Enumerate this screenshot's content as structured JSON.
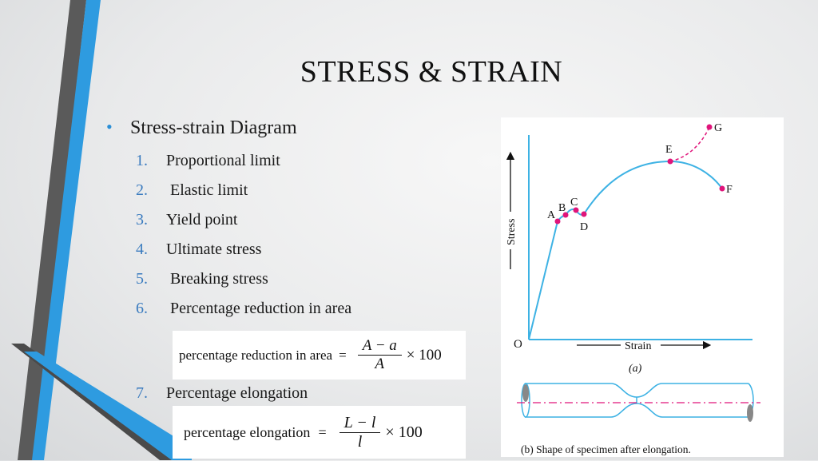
{
  "slide": {
    "title": "STRESS & STRAIN",
    "bullet": "Stress-strain Diagram",
    "items": [
      {
        "num": "1.",
        "label": "Proportional limit"
      },
      {
        "num": "2.",
        "label": "Elastic limit"
      },
      {
        "num": "3.",
        "label": "Yield point"
      },
      {
        "num": "4.",
        "label": "Ultimate stress"
      },
      {
        "num": "5.",
        "label": "Breaking stress"
      },
      {
        "num": "6.",
        "label": "Percentage reduction in area"
      },
      {
        "num": "7.",
        "label": "Percentage elongation"
      }
    ],
    "formula_area": {
      "lhs": "percentage reduction in area",
      "eq": "=",
      "numerator": "A − a",
      "denominator": "A",
      "times": "× 100"
    },
    "formula_elong": {
      "lhs": "percentage elongation",
      "eq": "=",
      "numerator": "L − l",
      "denominator": "l",
      "times": "× 100"
    }
  },
  "diagram": {
    "y_axis_label": "Stress",
    "x_axis_label": "Strain",
    "origin": "O",
    "points": [
      "A",
      "B",
      "C",
      "D",
      "E",
      "F",
      "G"
    ],
    "caption_a": "(a)",
    "caption_b": "(b) Shape of specimen after elongation.",
    "colors": {
      "curve": "#3db2e4",
      "point": "#e0147a",
      "dashed": "#e0147a"
    }
  }
}
